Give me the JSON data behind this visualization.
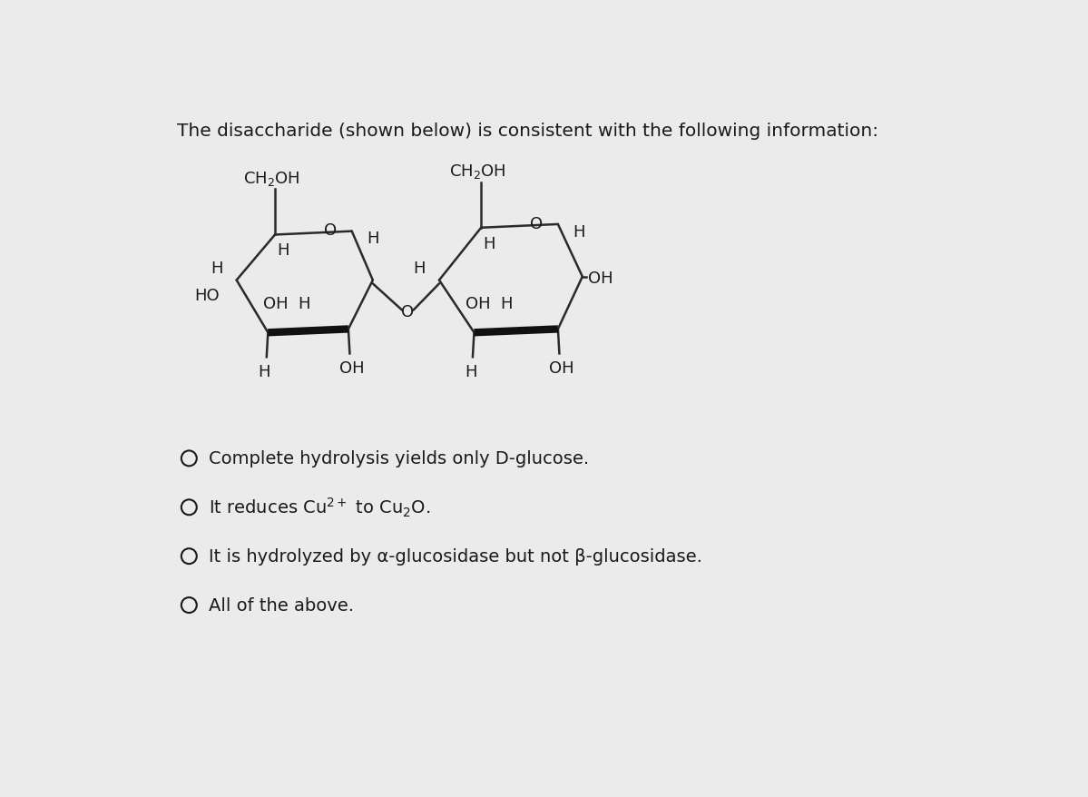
{
  "background_color": "#ebebeb",
  "title_text": "The disaccharide (shown below) is consistent with the following information:",
  "title_fontsize": 14.5,
  "title_color": "#1a1a1a",
  "text_color": "#1a1a1a",
  "line_color": "#2a2a2a",
  "bold_line_color": "#111111",
  "option_fontsize": 14,
  "option_texts": [
    "Complete hydrolysis yields only D-glucose.",
    "It reduces Cu²⁺ to Cu₂O.",
    "It is hydrolyzed by α-glucosidase but not β-glucosidase.",
    "All of the above."
  ],
  "fig_width": 11.99,
  "fig_height": 8.79,
  "dpi": 100
}
